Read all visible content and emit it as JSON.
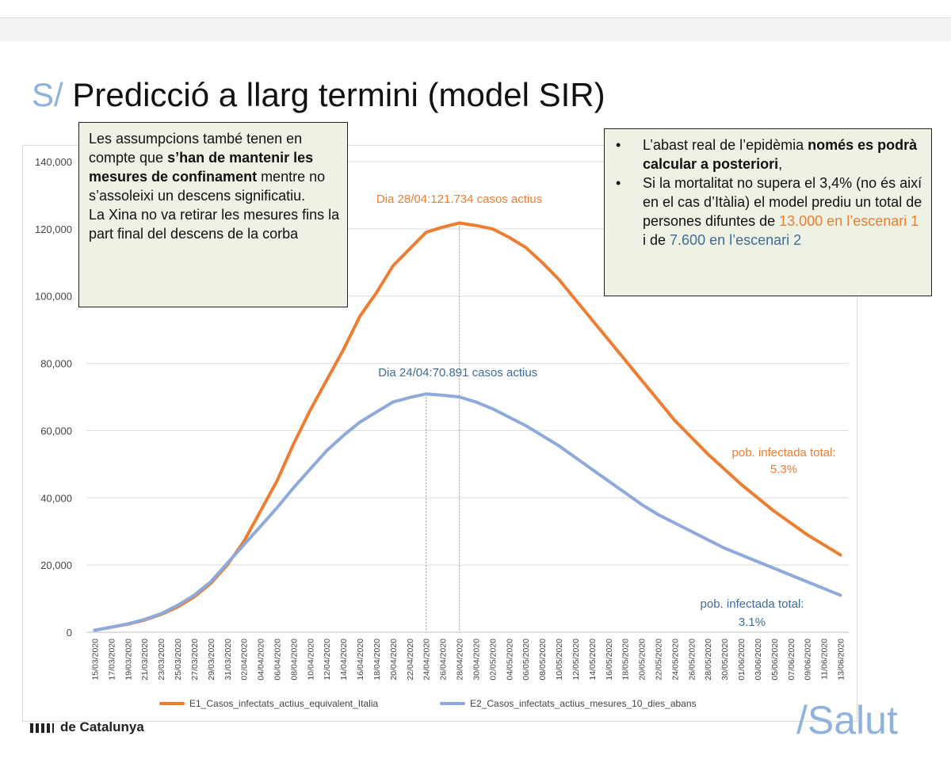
{
  "slide": {
    "title_prefix": "S/",
    "title": "Predicció a llarg termini (model SIR)",
    "footer_logo": "de Catalunya",
    "footer_brand": "/Salut"
  },
  "notes": {
    "left": {
      "t1": "Les assumpcions també tenen en compte que ",
      "b1": "s’han de mantenir les mesures de confinament",
      "t2": " mentre no s’assoleixi un descens significatiu.",
      "t3": "La Xina no va retirar les mesures fins la part final del descens de la corba"
    },
    "right": {
      "bullet": "•",
      "i1_t1": "L’abast real de l’epidèmia ",
      "i1_b1": "només es podrà calcular a posteriori",
      "i1_t2": ",",
      "i2_t1": "Si la mortalitat no supera el 3,4% (no és així en el cas d’Itàlia)  el model prediu un total de persones difuntes de ",
      "i2_o": "13.000 en l’escenari 1",
      "i2_t2": " i de ",
      "i2_b": "7.600 en l’escenari 2"
    }
  },
  "chart_data": {
    "type": "line",
    "x": [
      "15/03/2020",
      "17/03/2020",
      "19/03/2020",
      "21/03/2020",
      "23/03/2020",
      "25/03/2020",
      "27/03/2020",
      "29/03/2020",
      "31/03/2020",
      "02/04/2020",
      "04/04/2020",
      "06/04/2020",
      "08/04/2020",
      "10/04/2020",
      "12/04/2020",
      "14/04/2020",
      "16/04/2020",
      "18/04/2020",
      "20/04/2020",
      "22/04/2020",
      "24/04/2020",
      "26/04/2020",
      "28/04/2020",
      "30/04/2020",
      "02/05/2020",
      "04/05/2020",
      "06/05/2020",
      "08/05/2020",
      "10/05/2020",
      "12/05/2020",
      "14/05/2020",
      "16/05/2020",
      "18/05/2020",
      "20/05/2020",
      "22/05/2020",
      "24/05/2020",
      "26/05/2020",
      "28/05/2020",
      "30/05/2020",
      "01/06/2020",
      "03/06/2020",
      "05/06/2020",
      "07/06/2020",
      "09/06/2020",
      "11/06/2020",
      "13/06/2020"
    ],
    "ylim": [
      0,
      140000
    ],
    "yticks": [
      0,
      20000,
      40000,
      60000,
      80000,
      100000,
      120000,
      140000
    ],
    "ytick_labels": [
      "0",
      "20,000",
      "40,000",
      "60,000",
      "80,000",
      "100,000",
      "120,000",
      "140,000"
    ],
    "series": [
      {
        "name": "E1_Casos_infectats_actius_equivalent_Italia",
        "color": "#ed7d31",
        "values": [
          600,
          1500,
          2400,
          3600,
          5300,
          7500,
          10500,
          14500,
          20000,
          27000,
          36000,
          45000,
          56000,
          66000,
          75000,
          84000,
          94000,
          101000,
          109000,
          114000,
          119000,
          120500,
          121734,
          121000,
          120000,
          117500,
          114500,
          110000,
          105000,
          99000,
          93000,
          87000,
          81000,
          75000,
          69000,
          63000,
          58000,
          53000,
          48500,
          44000,
          40000,
          36000,
          32500,
          29000,
          26000,
          23000
        ]
      },
      {
        "name": "E2_Casos_infectats_actius_mesures_10_dies_abans",
        "color": "#8eaadb",
        "values": [
          600,
          1500,
          2500,
          3800,
          5500,
          8000,
          11000,
          15000,
          20500,
          26000,
          31500,
          37000,
          43000,
          48500,
          54000,
          58500,
          62500,
          65500,
          68500,
          69800,
          70891,
          70500,
          70000,
          68500,
          66500,
          64000,
          61500,
          58500,
          55500,
          52000,
          48500,
          45000,
          41500,
          38000,
          35000,
          32500,
          30000,
          27500,
          25000,
          23000,
          21000,
          19000,
          17000,
          15000,
          13000,
          11000
        ]
      }
    ],
    "annotations": {
      "peak1_label": "Dia 28/04:121.734 casos actius",
      "peak1_x": "28/04/2020",
      "peak2_label": "Dia 24/04:70.891 casos actius",
      "peak2_x": "24/04/2020",
      "total1_line1": "pob. infectada total:",
      "total1_line2": "5.3%",
      "total2_line1": "pob. infectada total:",
      "total2_line2": "3.1%"
    },
    "grid": true,
    "legend": "bottom"
  }
}
